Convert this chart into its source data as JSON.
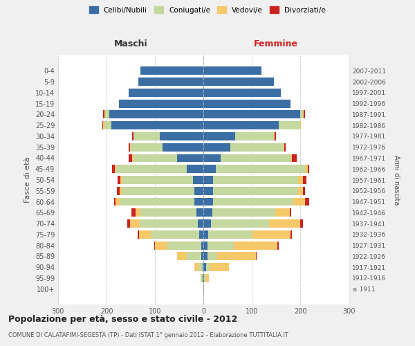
{
  "age_groups": [
    "100+",
    "95-99",
    "90-94",
    "85-89",
    "80-84",
    "75-79",
    "70-74",
    "65-69",
    "60-64",
    "55-59",
    "50-54",
    "45-49",
    "40-44",
    "35-39",
    "30-34",
    "25-29",
    "20-24",
    "15-19",
    "10-14",
    "5-9",
    "0-4"
  ],
  "birth_years": [
    "≤ 1911",
    "1912-1916",
    "1917-1921",
    "1922-1926",
    "1927-1931",
    "1932-1936",
    "1937-1941",
    "1942-1946",
    "1947-1951",
    "1952-1956",
    "1957-1961",
    "1962-1966",
    "1967-1971",
    "1972-1976",
    "1977-1981",
    "1982-1986",
    "1987-1991",
    "1992-1996",
    "1997-2001",
    "2002-2006",
    "2007-2011"
  ],
  "colors": {
    "celibi": "#3a6ea5",
    "coniugati": "#c5d8a0",
    "vedovi": "#f5c96a",
    "divorziati": "#cc2222"
  },
  "male": {
    "celibi": [
      0,
      1,
      2,
      5,
      5,
      8,
      12,
      15,
      18,
      18,
      22,
      35,
      55,
      85,
      90,
      190,
      195,
      175,
      155,
      135,
      130
    ],
    "coniugati": [
      0,
      3,
      8,
      30,
      70,
      100,
      120,
      115,
      155,
      150,
      145,
      145,
      90,
      65,
      55,
      15,
      8,
      0,
      0,
      0,
      0
    ],
    "vedovi": [
      0,
      2,
      8,
      20,
      25,
      25,
      20,
      10,
      8,
      5,
      5,
      3,
      2,
      2,
      0,
      2,
      2,
      0,
      0,
      0,
      0
    ],
    "divorziati": [
      0,
      0,
      0,
      0,
      2,
      3,
      5,
      8,
      3,
      5,
      5,
      5,
      8,
      3,
      2,
      2,
      2,
      0,
      0,
      0,
      0
    ]
  },
  "female": {
    "celibi": [
      1,
      2,
      5,
      8,
      8,
      10,
      15,
      18,
      20,
      20,
      20,
      25,
      35,
      55,
      65,
      155,
      200,
      180,
      160,
      145,
      120
    ],
    "coniugati": [
      0,
      2,
      8,
      20,
      55,
      90,
      120,
      130,
      165,
      175,
      175,
      185,
      145,
      110,
      80,
      45,
      5,
      0,
      0,
      0,
      0
    ],
    "vedovi": [
      1,
      8,
      40,
      80,
      90,
      80,
      65,
      30,
      25,
      10,
      10,
      5,
      3,
      2,
      2,
      2,
      2,
      0,
      0,
      0,
      0
    ],
    "divorziati": [
      0,
      0,
      0,
      2,
      2,
      3,
      5,
      3,
      8,
      5,
      8,
      3,
      10,
      3,
      3,
      0,
      3,
      0,
      0,
      0,
      0
    ]
  },
  "title": "Popolazione per età, sesso e stato civile - 2012",
  "subtitle": "COMUNE DI CALATAFIMI-SEGESTA (TP) - Dati ISTAT 1° gennaio 2012 - Elaborazione TUTTITALIA.IT",
  "xlabel_left": "Maschi",
  "xlabel_right": "Femmine",
  "ylabel_left": "Fasce di età",
  "ylabel_right": "Anni di nascita",
  "xlim": 300,
  "bg_color": "#f0f0f0",
  "plot_bg": "#ffffff",
  "legend_labels": [
    "Celibi/Nubili",
    "Coniugati/e",
    "Vedovi/e",
    "Divorziati/e"
  ]
}
